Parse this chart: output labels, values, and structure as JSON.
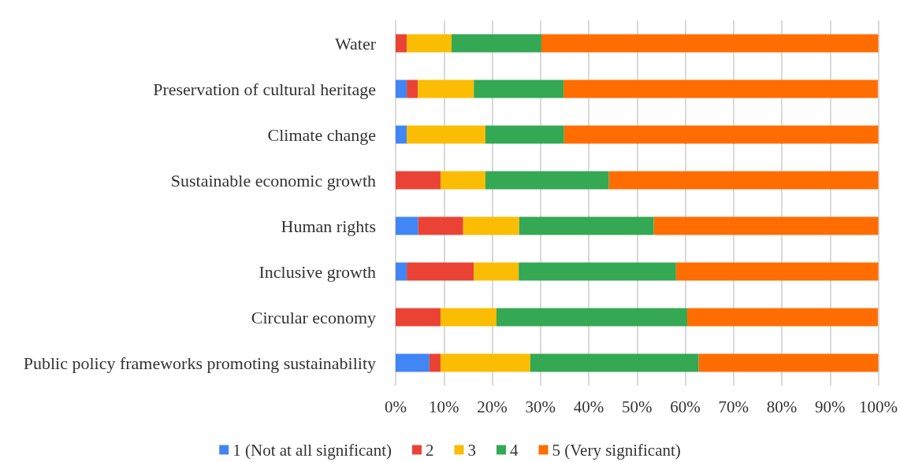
{
  "chart_data": {
    "type": "bar",
    "orientation": "horizontal",
    "stacked": true,
    "categories": [
      "Water",
      "Preservation of cultural heritage",
      "Climate change",
      "Sustainable economic growth",
      "Human rights",
      "Inclusive growth",
      "Circular economy",
      "Public policy frameworks promoting sustainability"
    ],
    "series": [
      {
        "name": "1 (Not at all significant)",
        "color": "#4285f4",
        "values": [
          0,
          2.3,
          2.3,
          0,
          4.7,
          2.3,
          0,
          7.0
        ]
      },
      {
        "name": "2",
        "color": "#ea4335",
        "values": [
          2.3,
          2.3,
          0,
          9.3,
          9.3,
          13.9,
          9.3,
          2.3
        ]
      },
      {
        "name": "3",
        "color": "#fbbc04",
        "values": [
          9.3,
          11.6,
          16.3,
          9.3,
          11.6,
          9.3,
          11.6,
          18.6
        ]
      },
      {
        "name": "4",
        "color": "#34a853",
        "values": [
          18.6,
          18.6,
          16.3,
          25.6,
          27.9,
          32.6,
          39.5,
          34.9
        ]
      },
      {
        "name": "5 (Very significant)",
        "color": "#ff6d01",
        "values": [
          69.8,
          65.1,
          65.1,
          55.8,
          46.5,
          41.9,
          39.5,
          37.2
        ]
      }
    ],
    "xlim": [
      0,
      100
    ],
    "xticks": [
      {
        "value": 0,
        "label": "0%"
      },
      {
        "value": 10,
        "label": "10%"
      },
      {
        "value": 20,
        "label": "20%"
      },
      {
        "value": 30,
        "label": "30%"
      },
      {
        "value": 40,
        "label": "40%"
      },
      {
        "value": 50,
        "label": "50%"
      },
      {
        "value": 60,
        "label": "60%"
      },
      {
        "value": 70,
        "label": "70%"
      },
      {
        "value": 80,
        "label": "80%"
      },
      {
        "value": 90,
        "label": "90%"
      },
      {
        "value": 100,
        "label": "100%"
      }
    ],
    "grid": "x",
    "legend": "bottom"
  }
}
